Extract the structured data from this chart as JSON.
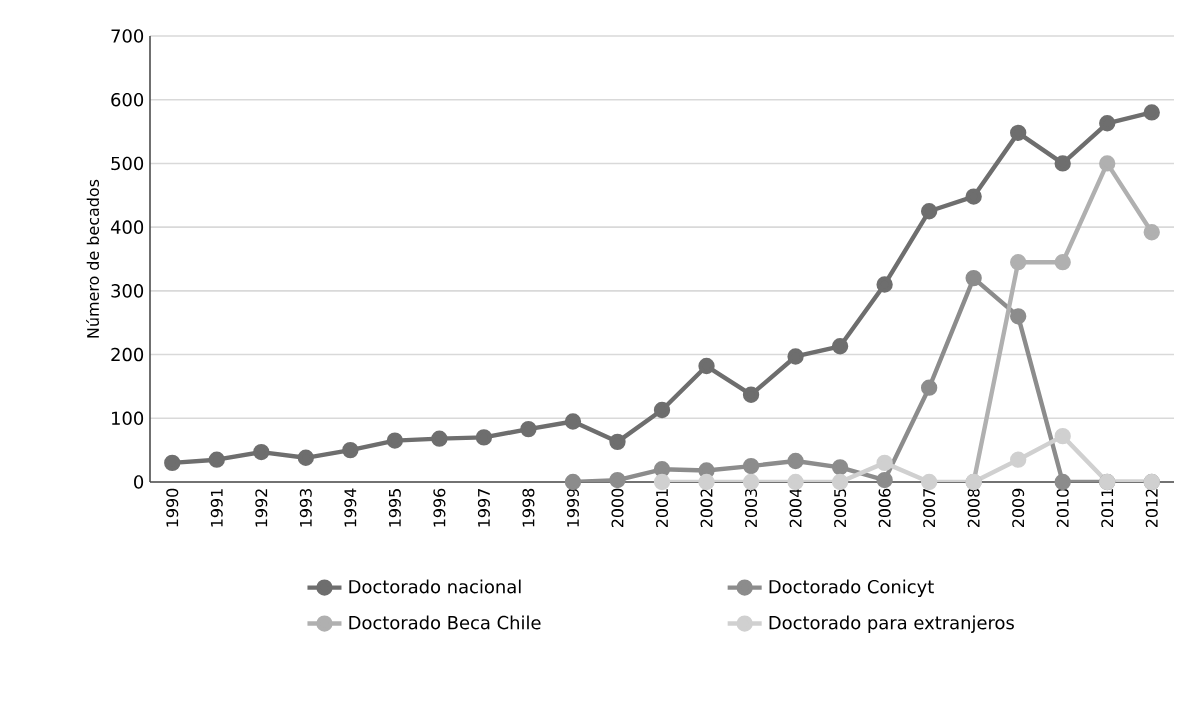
{
  "chart_data": {
    "type": "line",
    "ylabel": "Número de becados",
    "categories": [
      "1990",
      "1991",
      "1992",
      "1993",
      "1994",
      "1995",
      "1996",
      "1997",
      "1998",
      "1999",
      "2000",
      "2001",
      "2002",
      "2003",
      "2004",
      "2005",
      "2006",
      "2007",
      "2008",
      "2009",
      "2010",
      "2011",
      "2012"
    ],
    "series": [
      {
        "name": "Doctorado nacional",
        "color": "#6e6e6e",
        "values": [
          30,
          35,
          47,
          38,
          50,
          65,
          68,
          70,
          83,
          95,
          63,
          113,
          182,
          137,
          197,
          213,
          310,
          425,
          448,
          548,
          500,
          563,
          580
        ]
      },
      {
        "name": "Doctorado Conicyt",
        "color": "#8c8c8c",
        "values": [
          null,
          null,
          null,
          null,
          null,
          null,
          null,
          null,
          null,
          0,
          3,
          20,
          18,
          25,
          33,
          23,
          3,
          148,
          320,
          260,
          0,
          0,
          0
        ]
      },
      {
        "name": "Doctorado Beca Chile",
        "color": "#b0b0b0",
        "values": [
          null,
          null,
          null,
          null,
          null,
          null,
          null,
          null,
          null,
          null,
          null,
          null,
          null,
          null,
          null,
          null,
          null,
          null,
          0,
          345,
          345,
          500,
          392
        ]
      },
      {
        "name": "Doctorado para extranjeros",
        "color": "#d0d0d0",
        "values": [
          null,
          null,
          null,
          null,
          null,
          null,
          null,
          null,
          null,
          null,
          null,
          0,
          0,
          0,
          0,
          0,
          30,
          0,
          0,
          35,
          72,
          0,
          0
        ]
      }
    ],
    "ylim": [
      0,
      700
    ],
    "yticks": [
      0,
      100,
      200,
      300,
      400,
      500,
      600,
      700
    ],
    "grid": "y",
    "legend": "bottom",
    "marker": "circle",
    "line_style": "solid"
  }
}
